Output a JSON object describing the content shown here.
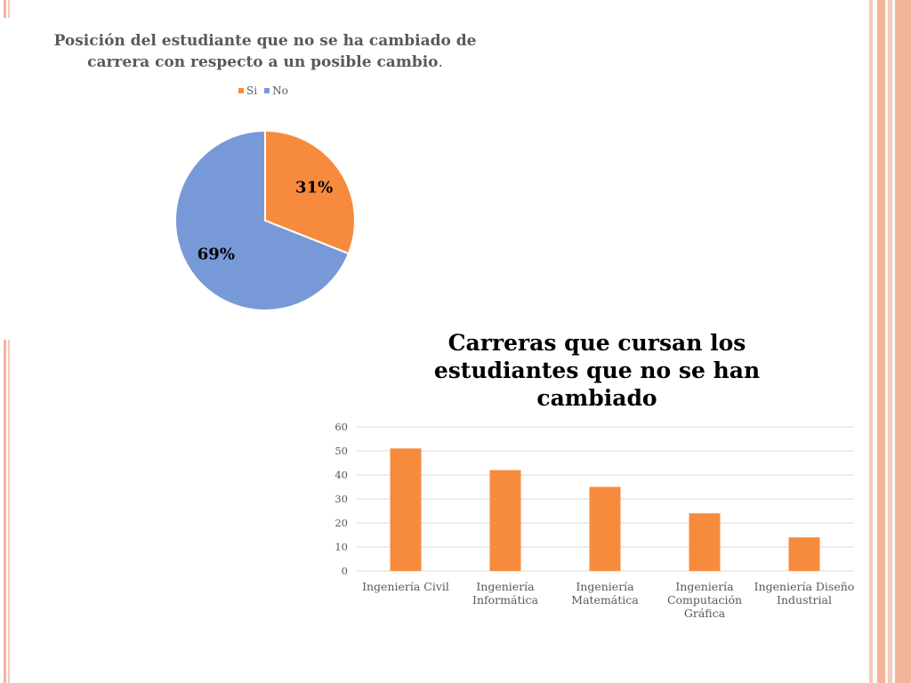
{
  "colors": {
    "orange": "#f78b3d",
    "blue": "#7899d8",
    "grid": "#d9d9d9",
    "axis_text": "#595959"
  },
  "chart_data": [
    {
      "type": "pie",
      "title_main": "Posición del estudiante que no se ha cambiado de carrera con respecto a un posible cambio",
      "title_tail": ".",
      "legend_position": "top",
      "slices": [
        {
          "name": "Si",
          "value": 31,
          "label": "31%",
          "color": "#f78b3d"
        },
        {
          "name": "No",
          "value": 69,
          "label": "69%",
          "color": "#7899d8"
        }
      ]
    },
    {
      "type": "bar",
      "title": "Carreras que cursan los estudiantes que no se han cambiado",
      "categories": [
        "Ingeniería Civil",
        "Ingeniería Informática",
        "Ingeniería Matemática",
        "Ingeniería Computación Gráfica",
        "Ingeniería Diseño Industrial"
      ],
      "values": [
        51,
        42,
        35,
        24,
        14
      ],
      "ylim": [
        0,
        60
      ],
      "yticks": [
        "0",
        "10",
        "20",
        "30",
        "40",
        "50",
        "60"
      ],
      "grid": true,
      "color": "#f78b3d"
    }
  ]
}
